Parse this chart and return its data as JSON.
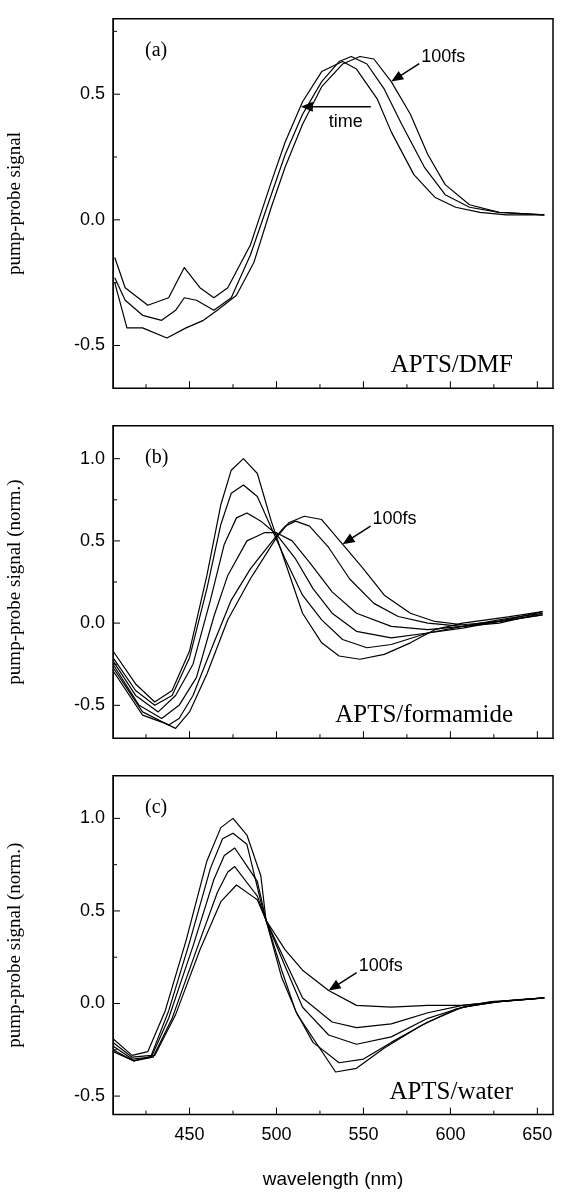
{
  "chart_data": [
    {
      "type": "line",
      "ylabel": "pump-probe signal",
      "annotations": [
        "(a)",
        "APTS/DMF",
        {
          "text": "100fs",
          "x": 566,
          "y": 0.55
        },
        {
          "text": "time",
          "x": 514,
          "y": 0.45
        }
      ],
      "xlim": [
        406,
        659
      ],
      "ylim": [
        -0.67,
        0.8
      ],
      "xticks": [
        {
          "value": 425,
          "label": null
        },
        450,
        {
          "value": 475,
          "label": null
        },
        500,
        {
          "value": 525,
          "label": null
        },
        550,
        {
          "value": 575,
          "label": null
        },
        600,
        {
          "value": 625,
          "label": null
        },
        650
      ],
      "yticks": [
        {
          "value": -0.5,
          "label": "-0.5"
        },
        {
          "value": -0.25,
          "label": null
        },
        {
          "value": 0,
          "label": "0.0"
        },
        {
          "value": 0.25,
          "label": null
        },
        {
          "value": 0.5,
          "label": "0.5"
        },
        {
          "value": 0.75,
          "label": null
        }
      ],
      "tick_labels": "y",
      "legend": false,
      "grid": false,
      "marker": "none",
      "line_style": "solid",
      "series": [
        {
          "color": "#000000",
          "x": [
            407,
            413,
            426,
            438,
            447,
            456,
            464,
            472,
            485,
            497,
            505,
            515,
            526,
            538,
            546,
            558,
            566,
            579,
            591,
            603,
            617,
            632,
            654
          ],
          "values": [
            -0.15,
            -0.27,
            -0.34,
            -0.31,
            -0.19,
            -0.27,
            -0.31,
            -0.27,
            -0.1,
            0.15,
            0.31,
            0.47,
            0.59,
            0.63,
            0.6,
            0.48,
            0.35,
            0.18,
            0.09,
            0.05,
            0.03,
            0.02,
            0.02
          ]
        },
        {
          "color": "#000000",
          "x": [
            407,
            413,
            423,
            434,
            442,
            447,
            454,
            464,
            474,
            485,
            497,
            505,
            515,
            526,
            536,
            543,
            552,
            562,
            572,
            585,
            597,
            611,
            628,
            654
          ],
          "values": [
            -0.23,
            -0.32,
            -0.38,
            -0.4,
            -0.36,
            -0.31,
            -0.32,
            -0.36,
            -0.31,
            -0.14,
            0.1,
            0.26,
            0.42,
            0.55,
            0.63,
            0.65,
            0.62,
            0.52,
            0.38,
            0.21,
            0.1,
            0.05,
            0.03,
            0.02
          ]
        },
        {
          "color": "#000000",
          "x": [
            407,
            414,
            423,
            437,
            448,
            458,
            466,
            477,
            487,
            497,
            505,
            515,
            526,
            538,
            548,
            556,
            566,
            577,
            587,
            597,
            611,
            628,
            654
          ],
          "values": [
            -0.25,
            -0.43,
            -0.43,
            -0.47,
            -0.43,
            -0.4,
            -0.36,
            -0.3,
            -0.17,
            0.05,
            0.21,
            0.38,
            0.53,
            0.62,
            0.65,
            0.64,
            0.55,
            0.42,
            0.26,
            0.14,
            0.06,
            0.03,
            0.02
          ]
        }
      ]
    },
    {
      "type": "line",
      "ylabel": "pump-probe signal (norm.)",
      "annotations": [
        "(b)",
        "APTS/formamide",
        {
          "text": "100fs",
          "x": 538,
          "y": 0.48
        }
      ],
      "xlim": [
        406,
        659
      ],
      "ylim": [
        -0.7,
        1.2
      ],
      "xticks": [
        {
          "value": 425,
          "label": null
        },
        450,
        {
          "value": 475,
          "label": null
        },
        500,
        {
          "value": 525,
          "label": null
        },
        550,
        {
          "value": 575,
          "label": null
        },
        600,
        {
          "value": 625,
          "label": null
        },
        650
      ],
      "yticks": [
        {
          "value": -0.5,
          "label": "-0.5"
        },
        {
          "value": -0.25,
          "label": null
        },
        {
          "value": 0,
          "label": "0.0"
        },
        {
          "value": 0.25,
          "label": null
        },
        {
          "value": 0.5,
          "label": "0.5"
        },
        {
          "value": 0.75,
          "label": null
        },
        {
          "value": 1,
          "label": "1.0"
        }
      ],
      "tick_labels": "y",
      "legend": false,
      "grid": false,
      "marker": "none",
      "line_style": "solid",
      "series": [
        {
          "color": "#000000",
          "x": [
            406,
            419,
            430,
            440,
            450,
            460,
            468,
            474,
            481,
            489,
            497,
            505,
            515,
            526,
            536,
            548,
            562,
            577,
            591,
            607,
            628,
            653
          ],
          "values": [
            -0.17,
            -0.37,
            -0.48,
            -0.41,
            -0.17,
            0.29,
            0.72,
            0.93,
            1.0,
            0.91,
            0.62,
            0.37,
            0.06,
            -0.12,
            -0.2,
            -0.22,
            -0.19,
            -0.12,
            -0.04,
            0.0,
            0.03,
            0.07
          ]
        },
        {
          "color": "#000000",
          "x": [
            406,
            419,
            430,
            440,
            450,
            460,
            468,
            474,
            481,
            489,
            497,
            505,
            515,
            526,
            538,
            552,
            566,
            587,
            607,
            628,
            653
          ],
          "values": [
            -0.21,
            -0.41,
            -0.5,
            -0.44,
            -0.21,
            0.21,
            0.6,
            0.79,
            0.84,
            0.77,
            0.58,
            0.39,
            0.17,
            0.02,
            -0.1,
            -0.15,
            -0.13,
            -0.06,
            -0.02,
            0.02,
            0.06
          ]
        },
        {
          "color": "#000000",
          "x": [
            406,
            419,
            432,
            442,
            452,
            462,
            470,
            477,
            483,
            491,
            500,
            511,
            521,
            532,
            546,
            566,
            587,
            607,
            628,
            653
          ],
          "values": [
            -0.23,
            -0.44,
            -0.54,
            -0.44,
            -0.25,
            0.14,
            0.48,
            0.64,
            0.67,
            0.62,
            0.54,
            0.39,
            0.21,
            0.06,
            -0.05,
            -0.09,
            -0.06,
            -0.03,
            0.01,
            0.05
          ]
        },
        {
          "color": "#000000",
          "x": [
            406,
            421,
            434,
            444,
            454,
            464,
            472,
            483,
            493,
            500,
            509,
            519,
            532,
            546,
            566,
            587,
            607,
            628,
            653
          ],
          "values": [
            -0.25,
            -0.5,
            -0.58,
            -0.5,
            -0.33,
            0.04,
            0.29,
            0.5,
            0.55,
            0.55,
            0.5,
            0.37,
            0.19,
            0.06,
            -0.02,
            -0.04,
            -0.02,
            0.01,
            0.05
          ]
        },
        {
          "color": "#000000",
          "x": [
            406,
            423,
            438,
            444,
            452,
            464,
            474,
            485,
            500,
            505,
            511,
            519,
            530,
            542,
            556,
            570,
            587,
            607,
            628,
            653
          ],
          "values": [
            -0.27,
            -0.54,
            -0.62,
            -0.58,
            -0.44,
            -0.12,
            0.14,
            0.33,
            0.53,
            0.59,
            0.62,
            0.59,
            0.46,
            0.27,
            0.12,
            0.04,
            0.0,
            -0.02,
            0.0,
            0.06
          ]
        },
        {
          "color": "#000000",
          "x": [
            406,
            423,
            436,
            442,
            450,
            460,
            472,
            485,
            500,
            507,
            516,
            526,
            538,
            550,
            562,
            577,
            591,
            607,
            628,
            653
          ],
          "values": [
            -0.29,
            -0.56,
            -0.61,
            -0.64,
            -0.54,
            -0.31,
            0.02,
            0.27,
            0.52,
            0.61,
            0.65,
            0.63,
            0.48,
            0.33,
            0.17,
            0.06,
            0.01,
            -0.01,
            0.01,
            0.07
          ]
        }
      ]
    },
    {
      "type": "line",
      "xlabel": "wavelength (nm)",
      "ylabel": "pump-probe signal (norm.)",
      "annotations": [
        "(c)",
        "APTS/water",
        {
          "text": "100fs",
          "x": 530,
          "y": 0.07
        }
      ],
      "xlim": [
        406,
        659
      ],
      "ylim": [
        -0.6,
        1.23
      ],
      "xticks": [
        {
          "value": 425,
          "label": null
        },
        450,
        {
          "value": 475,
          "label": null
        },
        500,
        {
          "value": 525,
          "label": null
        },
        550,
        {
          "value": 575,
          "label": null
        },
        600,
        {
          "value": 625,
          "label": null
        },
        650
      ],
      "yticks": [
        {
          "value": -0.5,
          "label": "-0.5"
        },
        {
          "value": -0.25,
          "label": null
        },
        {
          "value": 0,
          "label": "0.0"
        },
        {
          "value": 0.25,
          "label": null
        },
        {
          "value": 0.5,
          "label": "0.5"
        },
        {
          "value": 0.75,
          "label": null
        },
        {
          "value": 1,
          "label": "1.0"
        }
      ],
      "legend": false,
      "grid": false,
      "marker": "none",
      "line_style": "solid",
      "series": [
        {
          "color": "#000000",
          "x": [
            406,
            417,
            426,
            436,
            448,
            460,
            468,
            475,
            483,
            491,
            494,
            503,
            512,
            534,
            546,
            562,
            583,
            603,
            623,
            654
          ],
          "values": [
            -0.19,
            -0.28,
            -0.26,
            -0.04,
            0.34,
            0.77,
            0.95,
            1.0,
            0.91,
            0.69,
            0.45,
            0.14,
            -0.06,
            -0.37,
            -0.35,
            -0.24,
            -0.12,
            -0.03,
            0.01,
            0.03
          ]
        },
        {
          "color": "#000000",
          "x": [
            406,
            417,
            428,
            438,
            450,
            462,
            469,
            475,
            483,
            491,
            494,
            503,
            511,
            521,
            536,
            550,
            566,
            587,
            607,
            628,
            654
          ],
          "values": [
            -0.21,
            -0.29,
            -0.28,
            -0.04,
            0.33,
            0.73,
            0.89,
            0.92,
            0.86,
            0.55,
            0.45,
            0.18,
            -0.04,
            -0.21,
            -0.32,
            -0.3,
            -0.21,
            -0.1,
            -0.02,
            0.01,
            0.03
          ]
        },
        {
          "color": "#000000",
          "x": [
            406,
            417,
            428,
            438,
            452,
            464,
            470,
            476,
            489,
            494,
            505,
            515,
            530,
            546,
            566,
            587,
            607,
            628,
            654
          ],
          "values": [
            -0.23,
            -0.3,
            -0.29,
            -0.08,
            0.31,
            0.67,
            0.8,
            0.84,
            0.66,
            0.45,
            0.2,
            -0.02,
            -0.17,
            -0.22,
            -0.18,
            -0.08,
            -0.02,
            0.01,
            0.03
          ]
        },
        {
          "color": "#000000",
          "x": [
            406,
            418,
            429,
            440,
            454,
            466,
            472,
            476,
            489,
            494,
            505,
            515,
            532,
            546,
            566,
            587,
            607,
            628,
            654
          ],
          "values": [
            -0.25,
            -0.31,
            -0.29,
            -0.08,
            0.29,
            0.6,
            0.71,
            0.74,
            0.58,
            0.45,
            0.23,
            0.03,
            -0.1,
            -0.13,
            -0.11,
            -0.05,
            -0.01,
            0.01,
            0.03
          ]
        },
        {
          "color": "#000000",
          "x": [
            406,
            418,
            430,
            442,
            456,
            468,
            477,
            489,
            494,
            505,
            515,
            530,
            546,
            566,
            587,
            607,
            628,
            654
          ],
          "values": [
            -0.26,
            -0.31,
            -0.28,
            -0.06,
            0.29,
            0.55,
            0.64,
            0.56,
            0.45,
            0.29,
            0.18,
            0.07,
            -0.01,
            -0.02,
            -0.01,
            -0.01,
            0.01,
            0.03
          ]
        }
      ]
    }
  ]
}
